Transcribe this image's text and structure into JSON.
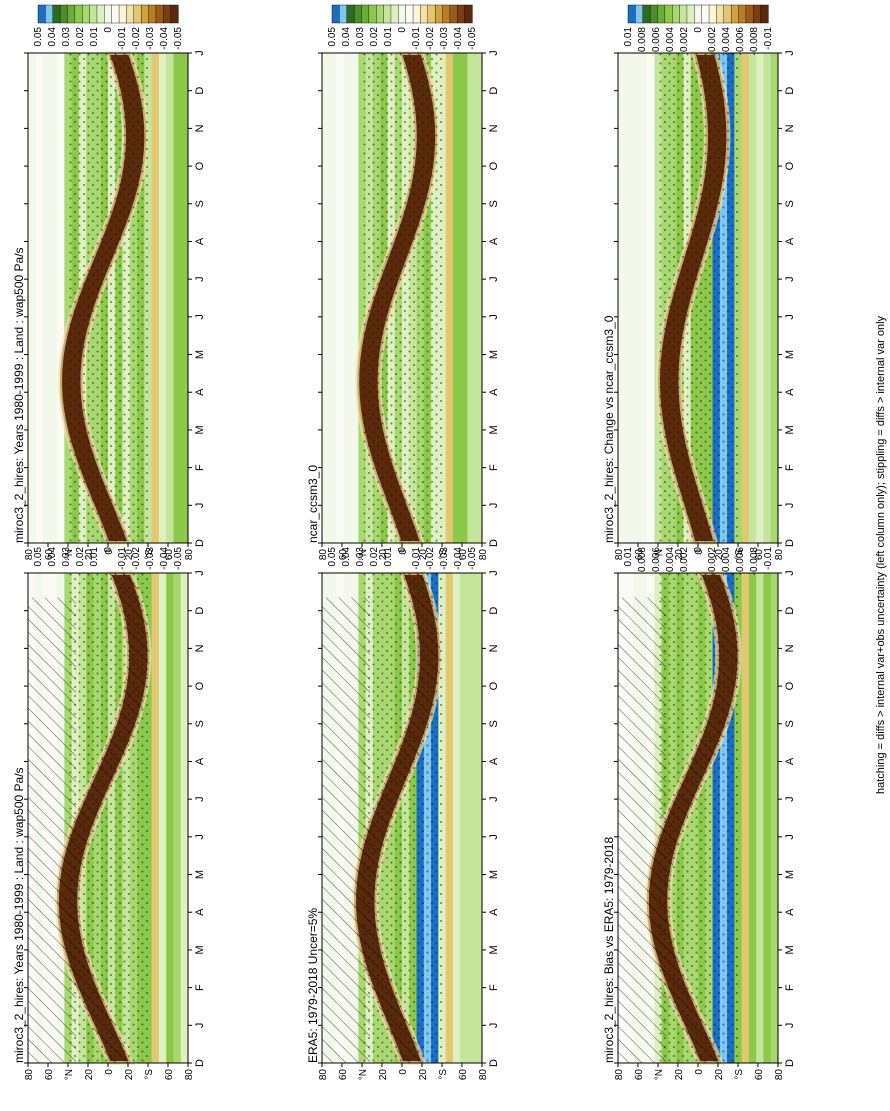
{
  "figure": {
    "caption": "hatching = diffs > internal var+obs uncertainty (left column only); stippling = diffs > internal var only"
  },
  "colors": {
    "scale": [
      "#1a6fc4",
      "#7ec8f0",
      "#2e6b1f",
      "#4a8f2a",
      "#6aae36",
      "#8cc84a",
      "#a8d870",
      "#c4e69a",
      "#ddf0c0",
      "#f2f8ea",
      "#fbfbf6",
      "#fff4d6",
      "#f1e2a6",
      "#e3c873",
      "#d1a23e",
      "#b97d22",
      "#9b5a1a",
      "#7a3e10",
      "#5a2a0a"
    ],
    "blue": "#1a6fc4",
    "lightblue": "#7ec8f0",
    "brown": "#5a2a0a",
    "green": "#8cc84a"
  },
  "chart_data": [
    {
      "type": "heatmap",
      "title": "miroc3_2_hires: Years 1980-1999 : Land : wap500 Pa/s",
      "x_ticks": [
        "D",
        "J",
        "F",
        "M",
        "A",
        "M",
        "J",
        "J",
        "A",
        "S",
        "O",
        "N",
        "D",
        "J"
      ],
      "y_ticks": [
        "80",
        "60",
        "°N",
        "20",
        "0",
        "20",
        "°S",
        "60",
        "80"
      ],
      "colorbar_ticks": [
        "0.05",
        "0.04",
        "0.03",
        "0.02",
        "0.01",
        "0",
        "-0.01",
        "-0.02",
        "-0.03",
        "-0.04",
        "-0.05"
      ],
      "hatched": true,
      "blue_bands": false,
      "itcz_amplitude": 0.22
    },
    {
      "type": "heatmap",
      "title": "miroc3_2_hires: Years 1980-1999 : Land : wap500 Pa/s",
      "x_ticks": [
        "D",
        "J",
        "F",
        "M",
        "A",
        "M",
        "J",
        "J",
        "A",
        "S",
        "O",
        "N",
        "D",
        "J"
      ],
      "y_ticks": [
        "80",
        "60",
        "°N",
        "20",
        "0",
        "20",
        "°S",
        "60",
        "80"
      ],
      "colorbar_ticks": [
        "0.05",
        "0.04",
        "0.03",
        "0.02",
        "0.01",
        "0",
        "-0.01",
        "-0.02",
        "-0.03",
        "-0.04",
        "-0.05"
      ],
      "hatched": false,
      "blue_bands": false,
      "itcz_amplitude": 0.2
    },
    {
      "type": "heatmap",
      "title": "ERA5: 1979-2018 Uncer=5%",
      "x_ticks": [
        "D",
        "J",
        "F",
        "M",
        "A",
        "M",
        "J",
        "J",
        "A",
        "S",
        "O",
        "N",
        "D",
        "J"
      ],
      "y_ticks": [
        "80",
        "60",
        "°N",
        "20",
        "0",
        "20",
        "°S",
        "60",
        "80"
      ],
      "colorbar_ticks": [
        "0.05",
        "0.04",
        "0.03",
        "0.02",
        "0.01",
        "0",
        "-0.01",
        "-0.02",
        "-0.03",
        "-0.04",
        "-0.05"
      ],
      "hatched": true,
      "blue_bands": true,
      "itcz_amplitude": 0.2
    },
    {
      "type": "heatmap",
      "title": "ncar_ccsm3_0",
      "x_ticks": [
        "D",
        "J",
        "F",
        "M",
        "A",
        "M",
        "J",
        "J",
        "A",
        "S",
        "O",
        "N",
        "D",
        "J"
      ],
      "y_ticks": [
        "80",
        "60",
        "°N",
        "20",
        "0",
        "20",
        "°S",
        "60",
        "80"
      ],
      "colorbar_ticks": [
        "0.05",
        "0.04",
        "0.03",
        "0.02",
        "0.01",
        "0",
        "-0.01",
        "-0.02",
        "-0.03",
        "-0.04",
        "-0.05"
      ],
      "hatched": false,
      "blue_bands": false,
      "itcz_amplitude": 0.18
    },
    {
      "type": "heatmap",
      "title": "miroc3_2_hires: Bias vs ERA5: 1979-2018",
      "x_ticks": [
        "D",
        "J",
        "F",
        "M",
        "A",
        "M",
        "J",
        "J",
        "A",
        "S",
        "O",
        "N",
        "D",
        "J"
      ],
      "y_ticks": [
        "80",
        "60",
        "°N",
        "20",
        "0",
        "20",
        "°S",
        "60",
        "80"
      ],
      "colorbar_ticks": [
        "0.01",
        "0.008",
        "0.006",
        "0.004",
        "0.002",
        "0",
        "-0.002",
        "-0.004",
        "-0.006",
        "-0.008",
        "-0.01"
      ],
      "hatched": true,
      "blue_bands": true,
      "itcz_amplitude": 0.22
    },
    {
      "type": "heatmap",
      "title": "miroc3_2_hires: Change vs ncar_ccsm3_0",
      "x_ticks": [
        "D",
        "J",
        "F",
        "M",
        "A",
        "M",
        "J",
        "J",
        "A",
        "S",
        "O",
        "N",
        "D",
        "J"
      ],
      "y_ticks": [
        "80",
        "60",
        "°N",
        "20",
        "0",
        "20",
        "°S",
        "60",
        "80"
      ],
      "colorbar_ticks": [
        "0.01",
        "0.008",
        "0.006",
        "0.004",
        "0.002",
        "0",
        "-0.002",
        "-0.004",
        "-0.006",
        "-0.008",
        "-0.01"
      ],
      "hatched": false,
      "blue_bands": true,
      "itcz_amplitude": 0.15
    }
  ]
}
